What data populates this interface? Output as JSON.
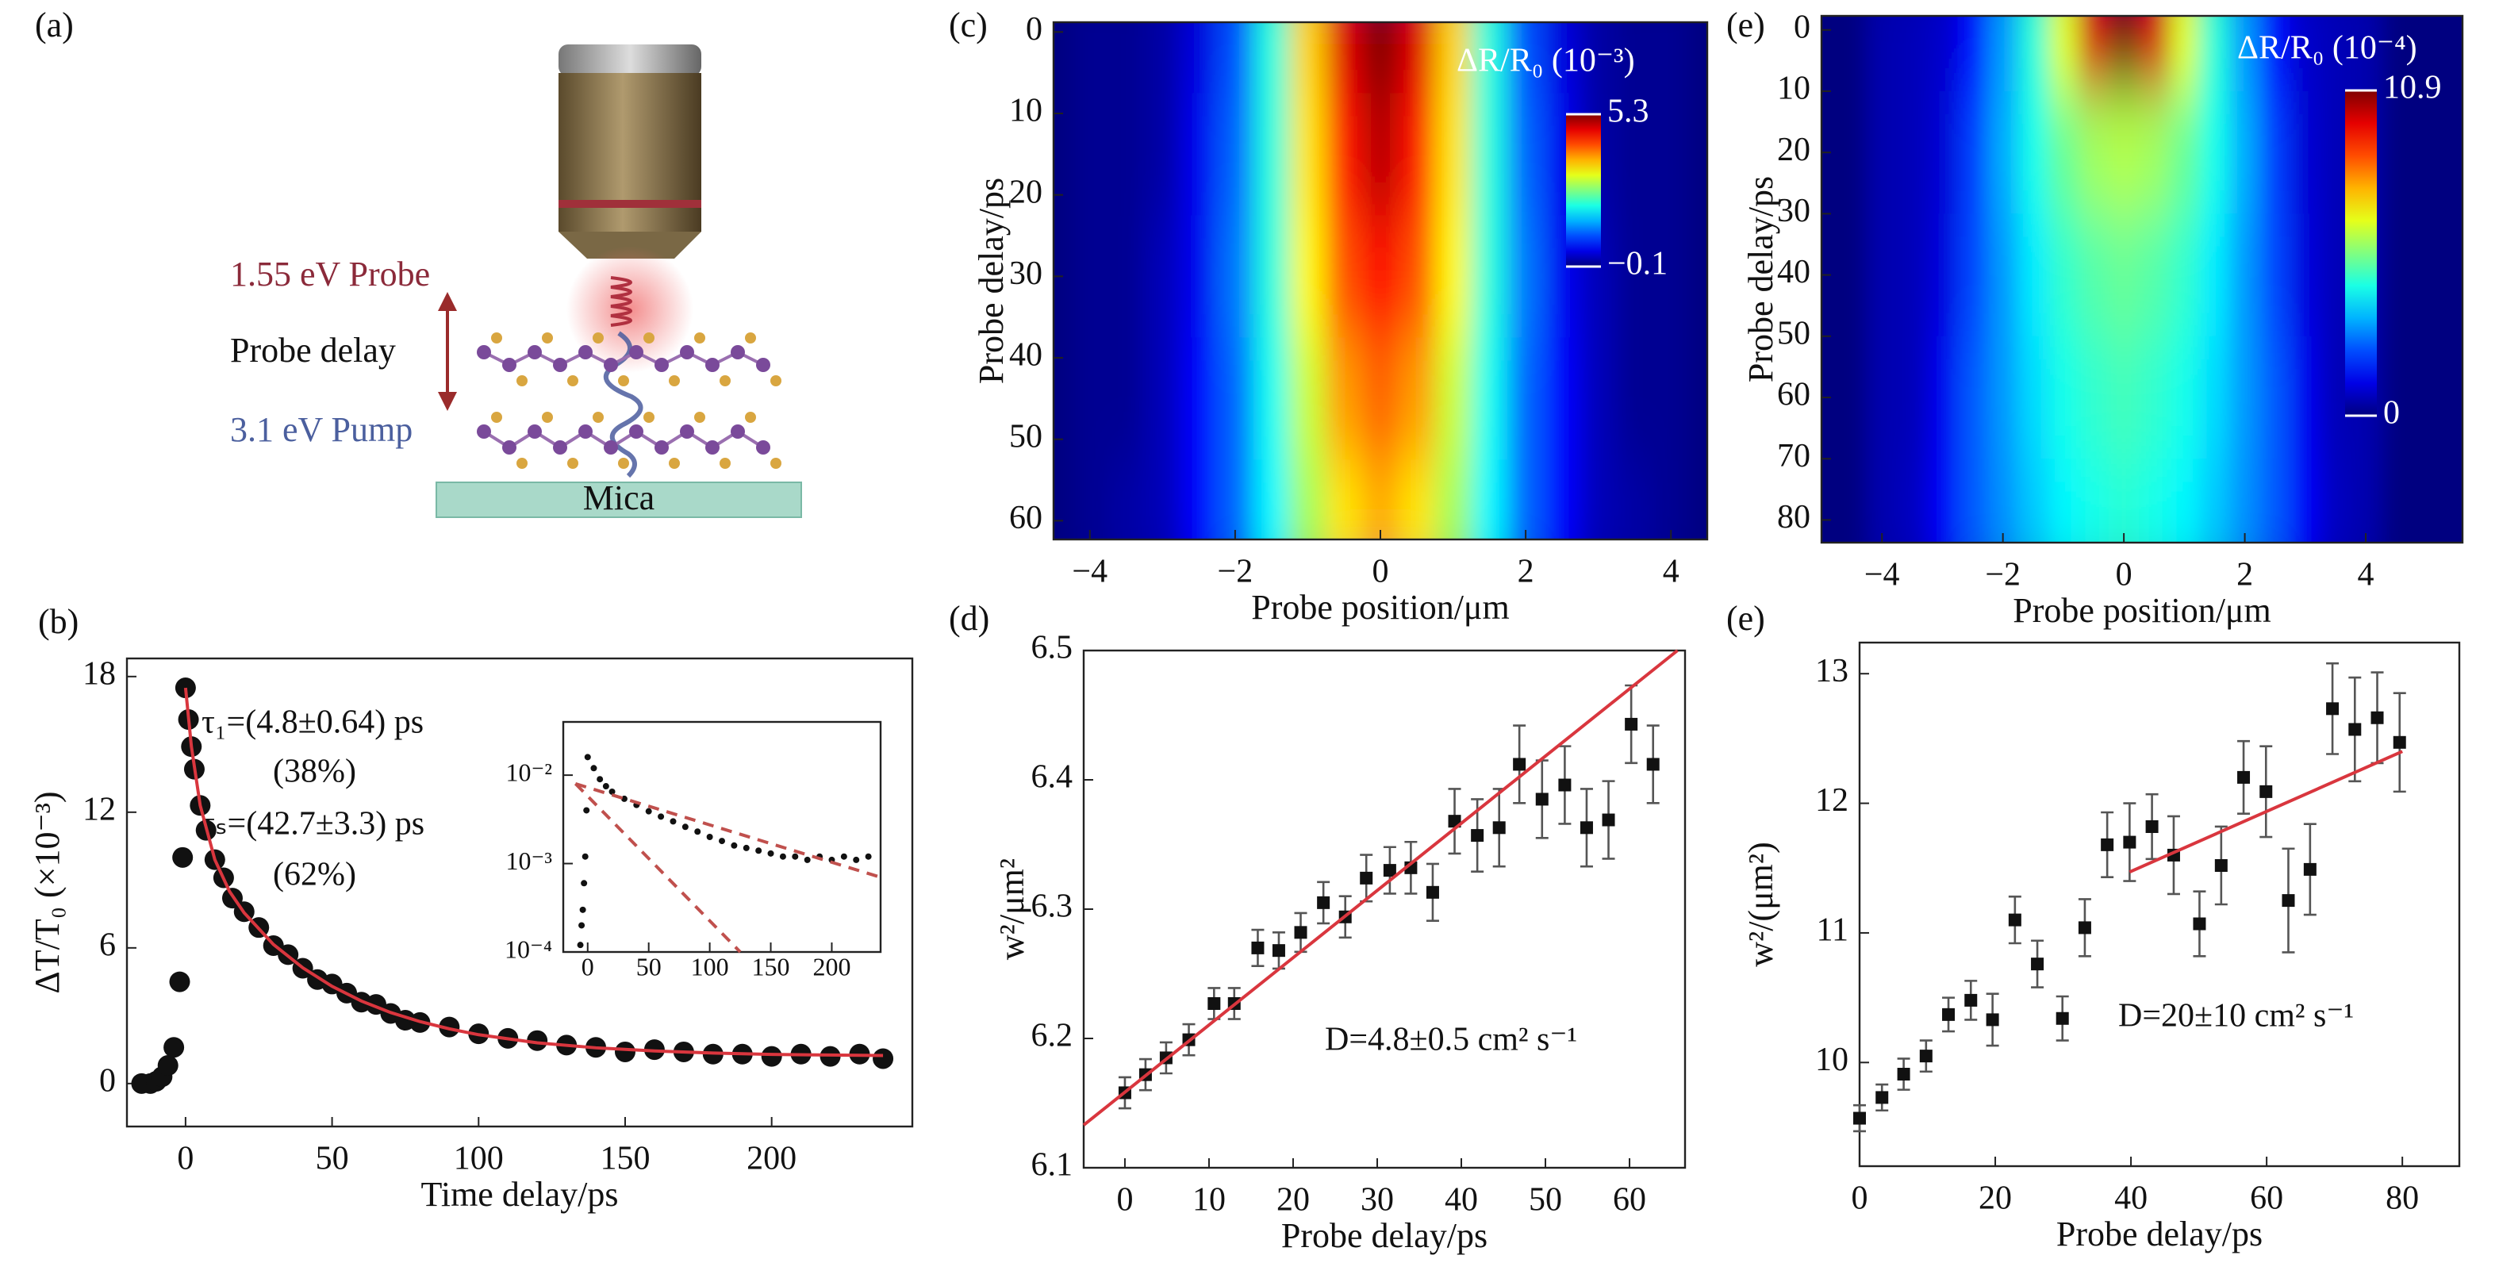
{
  "diagram": {
    "panel_label": "(a)",
    "probe": "1.55 eV Probe",
    "delay": "Probe delay",
    "pump": "3.1 eV Pump",
    "substrate": "Mica"
  },
  "chart_data": [
    {
      "type": "line",
      "panel_label": "(b)",
      "xlabel": "Time delay/ps",
      "ylabel": "ΔT/T₀ (×10⁻³)",
      "xlim": [
        -20,
        248
      ],
      "ylim": [
        -1.9,
        18.8
      ],
      "xticks": [
        0,
        50,
        100,
        150,
        200
      ],
      "yticks": [
        0,
        6,
        12,
        18
      ],
      "annotations": [
        "τ₁=(4.8±0.64) ps",
        "(38%)",
        "τₛ=(42.7±3.3) ps",
        "(62%)"
      ],
      "series": [
        {
          "style": "markers",
          "color": "#111111",
          "x": [
            -15,
            -12,
            -10,
            -8,
            -6,
            -4,
            -2,
            -1,
            0,
            1,
            2,
            3,
            5,
            7,
            10,
            13,
            16,
            20,
            25,
            30,
            35,
            40,
            45,
            50,
            55,
            60,
            65,
            70,
            75,
            80,
            90,
            100,
            110,
            120,
            130,
            140,
            150,
            160,
            170,
            180,
            190,
            200,
            210,
            220,
            230,
            238
          ],
          "values": [
            0,
            0,
            0.1,
            0.3,
            0.8,
            1.6,
            4.5,
            10,
            17.5,
            16.1,
            14.9,
            13.9,
            12.3,
            11.2,
            9.9,
            9.1,
            8.2,
            7.6,
            6.9,
            6.1,
            5.7,
            5.1,
            4.6,
            4.4,
            4.0,
            3.6,
            3.5,
            3.1,
            2.8,
            2.7,
            2.5,
            2.2,
            2.0,
            1.9,
            1.7,
            1.6,
            1.4,
            1.5,
            1.4,
            1.3,
            1.3,
            1.2,
            1.3,
            1.2,
            1.3,
            1.1
          ]
        },
        {
          "style": "line",
          "color": "#d9363e",
          "x": [
            0,
            2,
            5,
            10,
            15,
            20,
            30,
            40,
            50,
            60,
            70,
            80,
            90,
            100,
            120,
            140,
            160,
            180,
            200,
            220,
            238
          ],
          "values": [
            17.5,
            14.9,
            12.3,
            9.9,
            8.5,
            7.55,
            6.15,
            5.12,
            4.3,
            3.65,
            3.14,
            2.74,
            2.42,
            2.16,
            1.8,
            1.58,
            1.44,
            1.35,
            1.29,
            1.26,
            1.24
          ]
        }
      ]
    },
    {
      "type": "line",
      "yscale": "log",
      "xlim": [
        -20,
        240
      ],
      "ylim": [
        0.0001,
        0.04
      ],
      "xticks": [
        0,
        50,
        100,
        150,
        200
      ],
      "yticks": [
        {
          "value": 0.0001,
          "label": "10⁻⁴"
        },
        {
          "value": 0.001,
          "label": "10⁻³"
        },
        {
          "value": 0.01,
          "label": "10⁻²"
        }
      ],
      "series": [
        {
          "style": "markers",
          "color": "#111111",
          "x": [
            -6,
            -5,
            -4,
            -3,
            -2,
            -1,
            0,
            5,
            10,
            15,
            20,
            30,
            40,
            50,
            60,
            70,
            80,
            90,
            100,
            110,
            120,
            130,
            140,
            150,
            160,
            170,
            180,
            190,
            200,
            210,
            220,
            230
          ],
          "values": [
            0.00012,
            0.0002,
            0.0003,
            0.0006,
            0.0012,
            0.004,
            0.016,
            0.012,
            0.009,
            0.0075,
            0.0065,
            0.0054,
            0.0046,
            0.0039,
            0.0034,
            0.003,
            0.0026,
            0.0023,
            0.002,
            0.0018,
            0.0016,
            0.0015,
            0.0014,
            0.0013,
            0.0012,
            0.0012,
            0.0011,
            0.0012,
            0.0011,
            0.0012,
            0.0011,
            0.0012
          ]
        },
        {
          "style": "dashed",
          "color": "#c0504d",
          "x": [
            -10,
            240
          ],
          "values": [
            0.008,
            0.0007
          ]
        },
        {
          "style": "dashed",
          "color": "#c0504d",
          "x": [
            -10,
            125
          ],
          "values": [
            0.008,
            0.0001
          ]
        }
      ]
    },
    {
      "type": "heatmap",
      "panel_label": "(c)",
      "xlabel": "Probe position/μm",
      "ylabel": "Probe delay/ps",
      "xlim": [
        -4.5,
        4.5
      ],
      "ylim": [
        -1.2,
        62.3
      ],
      "yinvert": true,
      "xticks": [
        {
          "value": -4,
          "label": "−4"
        },
        {
          "value": -2,
          "label": "−2"
        },
        0,
        2,
        4
      ],
      "yticks": [
        0,
        10,
        20,
        30,
        40,
        50,
        60
      ],
      "x": [
        -4,
        -3.5,
        -3,
        -2.5,
        -2,
        -1.5,
        -1,
        -0.5,
        0,
        0.5,
        1,
        1.5,
        2,
        2.5,
        3,
        3.5,
        4
      ],
      "y": [
        0,
        15,
        30,
        45,
        60
      ],
      "z": [
        [
          0,
          0,
          0.1,
          0.4,
          1.0,
          2.1,
          3.5,
          4.8,
          5.3,
          4.8,
          3.5,
          2.1,
          1.0,
          0.4,
          0.1,
          0,
          0
        ],
        [
          0,
          0,
          0.1,
          0.5,
          1.1,
          2.1,
          3.4,
          4.5,
          5.0,
          4.5,
          3.4,
          2.1,
          1.1,
          0.5,
          0.1,
          0,
          0
        ],
        [
          0,
          0,
          0.2,
          0.5,
          1.2,
          2.1,
          3.3,
          4.2,
          4.6,
          4.2,
          3.3,
          2.1,
          1.2,
          0.5,
          0.2,
          0,
          0
        ],
        [
          0,
          0,
          0.2,
          0.6,
          1.1,
          2.0,
          3.0,
          3.8,
          4.1,
          3.8,
          3.0,
          2.0,
          1.1,
          0.6,
          0.2,
          0,
          0
        ],
        [
          0,
          0.1,
          0.2,
          0.6,
          1.1,
          1.9,
          2.8,
          3.4,
          3.7,
          3.4,
          2.8,
          1.9,
          1.1,
          0.6,
          0.2,
          0.1,
          0
        ]
      ],
      "colormap": "jet",
      "clabel": "ΔR/R₀ (10⁻³)",
      "clim": [
        -0.1,
        5.3
      ],
      "cticks": [
        5.3,
        {
          "value": -0.1,
          "label": "−0.1"
        }
      ]
    },
    {
      "type": "scatter",
      "panel_label": "(d)",
      "xlabel": "Probe delay/ps",
      "ylabel": "w²/μm²",
      "xlim": [
        -4.9,
        66.6
      ],
      "ylim": [
        6.1,
        6.5
      ],
      "xticks": [
        0,
        10,
        20,
        30,
        40,
        50,
        60
      ],
      "yticks": [
        6.1,
        6.2,
        6.3,
        6.4,
        6.5
      ],
      "annotations": [
        "D=4.8±0.5 cm² s⁻¹"
      ],
      "series": [
        {
          "style": "markers",
          "color": "#111111",
          "x": [
            0,
            2.45,
            4.9,
            7.6,
            10.6,
            13.0,
            15.8,
            18.3,
            20.9,
            23.6,
            26.2,
            28.7,
            31.5,
            34.0,
            36.6,
            39.2,
            41.9,
            44.5,
            46.9,
            49.6,
            52.3,
            54.9,
            57.5,
            60.2,
            62.8
          ],
          "values": [
            6.158,
            6.172,
            6.185,
            6.199,
            6.227,
            6.227,
            6.27,
            6.268,
            6.282,
            6.305,
            6.294,
            6.324,
            6.33,
            6.332,
            6.313,
            6.368,
            6.357,
            6.363,
            6.412,
            6.385,
            6.396,
            6.363,
            6.369,
            6.443,
            6.412
          ],
          "errors": [
            0.012,
            0.012,
            0.012,
            0.012,
            0.012,
            0.012,
            0.014,
            0.014,
            0.015,
            0.016,
            0.016,
            0.018,
            0.018,
            0.02,
            0.022,
            0.025,
            0.028,
            0.03,
            0.03,
            0.03,
            0.03,
            0.03,
            0.03,
            0.03,
            0.03
          ]
        },
        {
          "style": "line",
          "color": "#d9363e",
          "x": [
            -4.9,
            65.7
          ],
          "values": [
            6.133,
            6.5
          ]
        }
      ]
    },
    {
      "type": "heatmap",
      "panel_label": "(e)",
      "xlabel": "Probe position/μm",
      "ylabel": "Probe delay/ps",
      "xlim": [
        -5.0,
        5.6
      ],
      "ylim": [
        -2.3,
        83.7
      ],
      "yinvert": true,
      "xticks": [
        {
          "value": -4,
          "label": "−4"
        },
        {
          "value": -2,
          "label": "−2"
        },
        0,
        2,
        4
      ],
      "yticks": [
        0,
        10,
        20,
        30,
        40,
        50,
        60,
        70,
        80
      ],
      "x": [
        -4,
        -3.5,
        -3,
        -2.5,
        -2,
        -1.5,
        -1,
        -0.5,
        0,
        0.5,
        1,
        1.5,
        2,
        2.5,
        3,
        3.5,
        4
      ],
      "y": [
        0,
        20,
        40,
        60,
        80
      ],
      "z": [
        [
          0.5,
          0.6,
          0.8,
          1.5,
          3.0,
          4.5,
          6.5,
          10.0,
          10.9,
          10.0,
          6.5,
          4.5,
          3.0,
          1.5,
          0.8,
          0.6,
          0.5
        ],
        [
          0.5,
          0.6,
          0.9,
          2.0,
          3.2,
          4.3,
          5.2,
          5.8,
          6.0,
          5.8,
          5.2,
          4.3,
          3.2,
          2.0,
          0.9,
          0.6,
          0.5
        ],
        [
          0.5,
          0.6,
          1.0,
          2.1,
          3.0,
          3.9,
          4.6,
          5.0,
          5.2,
          5.0,
          4.6,
          3.9,
          3.0,
          2.1,
          1.0,
          0.6,
          0.5
        ],
        [
          0.5,
          0.6,
          1.2,
          2.3,
          3.0,
          3.7,
          4.3,
          4.6,
          4.8,
          4.6,
          4.3,
          3.7,
          3.0,
          2.3,
          1.2,
          0.6,
          0.5
        ],
        [
          0.5,
          0.7,
          1.3,
          2.3,
          2.9,
          3.5,
          4.0,
          4.3,
          4.5,
          4.3,
          4.0,
          3.5,
          2.9,
          2.3,
          1.3,
          0.7,
          0.5
        ]
      ],
      "colormap": "jet",
      "clabel": "ΔR/R₀ (10⁻⁴)",
      "clim": [
        0,
        10.9
      ],
      "cticks": [
        10.9,
        0
      ]
    },
    {
      "type": "scatter",
      "panel_label": "(e)",
      "xlabel": "Probe delay/ps",
      "ylabel": "w²/(μm²)",
      "xlim": [
        0,
        88.4
      ],
      "ylim": [
        9.2,
        13.24
      ],
      "xticks": [
        0,
        20,
        40,
        60,
        80
      ],
      "yticks": [
        10,
        11,
        12,
        13
      ],
      "annotations": [
        "D=20±10 cm² s⁻¹"
      ],
      "series": [
        {
          "style": "markers",
          "color": "#111111",
          "x": [
            0,
            3.3,
            6.5,
            9.8,
            13.1,
            16.4,
            19.6,
            22.9,
            26.2,
            29.9,
            33.2,
            36.5,
            39.8,
            43.1,
            46.3,
            50.1,
            53.3,
            56.6,
            59.9,
            63.2,
            66.4,
            69.7,
            73.0,
            76.3,
            79.6
          ],
          "values": [
            9.57,
            9.73,
            9.91,
            10.05,
            10.37,
            10.48,
            10.33,
            11.1,
            10.76,
            10.34,
            11.04,
            11.68,
            11.7,
            11.82,
            11.6,
            11.07,
            11.52,
            12.2,
            12.09,
            11.25,
            11.49,
            12.73,
            12.57,
            12.66,
            12.47
          ],
          "errors": [
            0.1,
            0.1,
            0.12,
            0.12,
            0.13,
            0.15,
            0.2,
            0.18,
            0.18,
            0.17,
            0.22,
            0.25,
            0.3,
            0.25,
            0.3,
            0.25,
            0.3,
            0.28,
            0.35,
            0.4,
            0.35,
            0.35,
            0.4,
            0.35,
            0.38
          ]
        },
        {
          "style": "line",
          "color": "#d9363e",
          "x": [
            39.8,
            80
          ],
          "values": [
            11.47,
            12.4
          ]
        }
      ]
    }
  ]
}
